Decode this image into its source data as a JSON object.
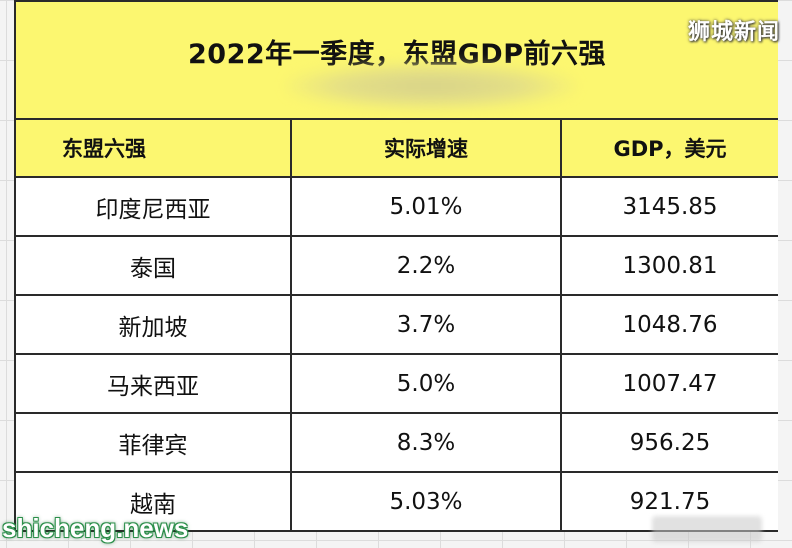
{
  "title": "2022年一季度，东盟GDP前六强",
  "headers": [
    "东盟六强",
    "实际增速",
    "GDP，美元"
  ],
  "rows": [
    {
      "country": "印度尼西亚",
      "growth": "5.01%",
      "gdp": "3145.85"
    },
    {
      "country": "泰国",
      "growth": "2.2%",
      "gdp": "1300.81"
    },
    {
      "country": "新加坡",
      "growth": "3.7%",
      "gdp": "1048.76"
    },
    {
      "country": "马来西亚",
      "growth": "5.0%",
      "gdp": "1007.47"
    },
    {
      "country": "菲律宾",
      "growth": "8.3%",
      "gdp": "956.25"
    },
    {
      "country": "越南",
      "growth": "5.03%",
      "gdp": "921.75"
    }
  ],
  "watermarks": {
    "top_right": "狮城新闻",
    "bottom_left": "shicheng.news"
  },
  "colors": {
    "header_bg": "#fcf770",
    "border": "#2a2a2a",
    "watermark_green": "#2b8f4a"
  }
}
